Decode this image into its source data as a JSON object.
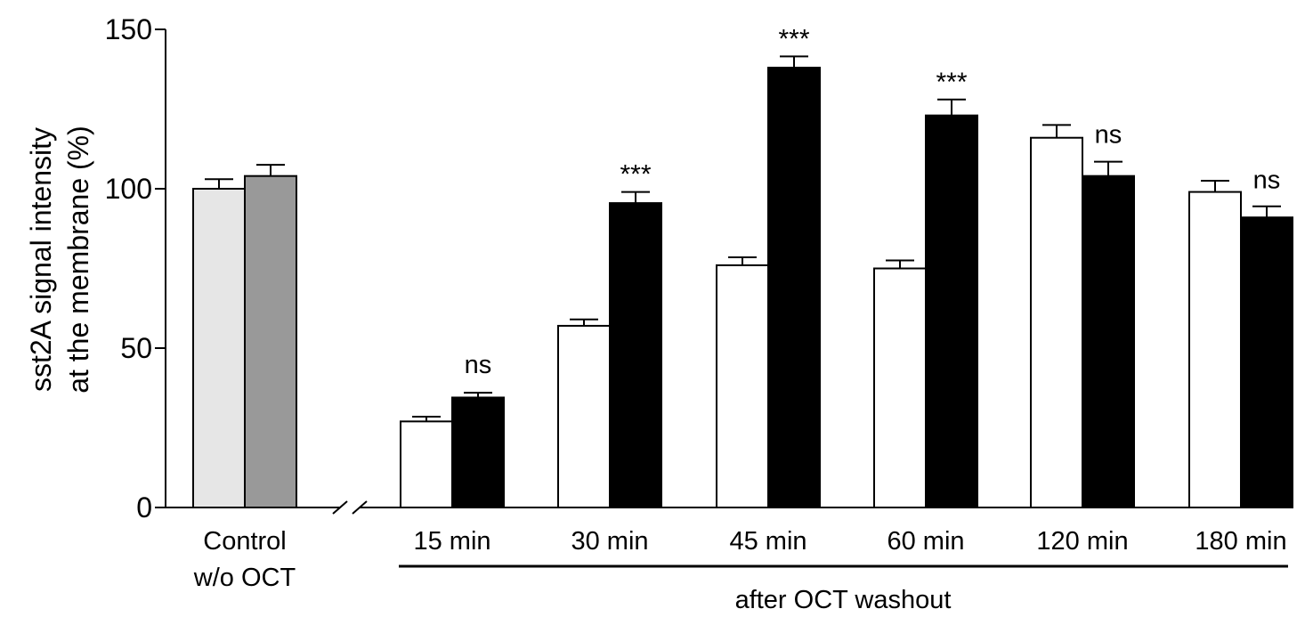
{
  "chart_data": {
    "type": "bar",
    "ylabel_lines": [
      "sst2A signal intensity",
      "at the membrane (%)"
    ],
    "ylim": [
      0,
      150
    ],
    "yticks": [
      0,
      50,
      100,
      150
    ],
    "group_label": "after OCT washout",
    "control": {
      "label_lines": [
        "Control",
        "w/o OCT"
      ],
      "bars": [
        {
          "value": 100,
          "error": 3,
          "color": "#e6e6e6"
        },
        {
          "value": 104,
          "error": 3.5,
          "color": "#999999"
        }
      ]
    },
    "categories": [
      "15 min",
      "30 min",
      "45 min",
      "60 min",
      "120 min",
      "180 min"
    ],
    "series": [
      {
        "fill": "#ffffff",
        "values": [
          27,
          57,
          76,
          75,
          116,
          99
        ],
        "errors": [
          1.5,
          2,
          2.5,
          2.5,
          4,
          3.5
        ]
      },
      {
        "fill": "#000000",
        "values": [
          34.5,
          95.5,
          138,
          123,
          104,
          91
        ],
        "errors": [
          1.5,
          3.5,
          3.5,
          5,
          4.5,
          3.5
        ]
      }
    ],
    "significance": [
      "ns",
      "***",
      "***",
      "***",
      "ns",
      "ns"
    ]
  }
}
